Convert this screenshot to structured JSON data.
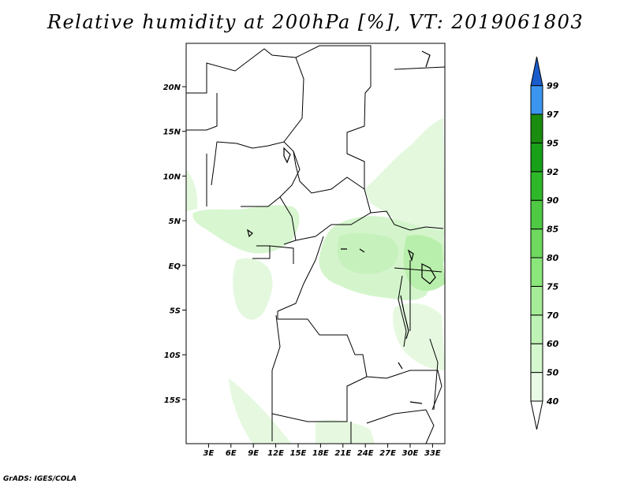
{
  "title": "Relative humidity at 200hPa [%], VT: 2019061803",
  "credit": "GrADS: IGES/COLA",
  "map": {
    "lon_labels": [
      "3E",
      "6E",
      "9E",
      "12E",
      "15E",
      "18E",
      "21E",
      "24E",
      "27E",
      "30E",
      "33E"
    ],
    "lat_labels": [
      "20N",
      "15N",
      "10N",
      "5N",
      "EQ",
      "5S",
      "10S",
      "15S"
    ]
  },
  "colorbar": {
    "labels": [
      "40",
      "50",
      "60",
      "70",
      "75",
      "80",
      "85",
      "90",
      "92",
      "95",
      "97",
      "99"
    ],
    "colors": [
      "#ffffff",
      "#e9fbe5",
      "#d4f7cd",
      "#bff3b5",
      "#a6ec98",
      "#8be67c",
      "#6ed85f",
      "#4fc943",
      "#2fb72a",
      "#18a018",
      "#1a8c10",
      "#3c96f0",
      "#2a78e0",
      "#1a5ccc"
    ]
  }
}
